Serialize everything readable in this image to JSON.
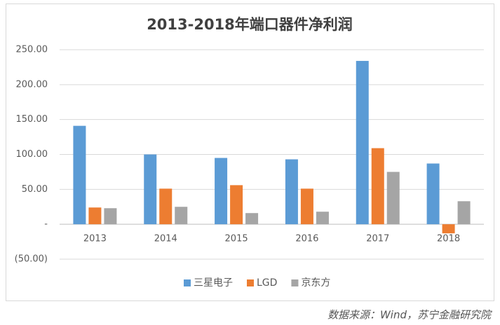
{
  "chart_data": {
    "type": "bar",
    "title": "2013-2018年端口器件净利润",
    "categories": [
      "2013",
      "2014",
      "2015",
      "2016",
      "2017",
      "2018"
    ],
    "series": [
      {
        "name": "三星电子",
        "color": "#5b9bd5",
        "values": [
          141,
          100,
          95,
          93,
          234,
          87
        ]
      },
      {
        "name": "LGD",
        "color": "#ed7d31",
        "values": [
          24,
          51,
          56,
          51,
          109,
          -13
        ]
      },
      {
        "name": "京东方",
        "color": "#a5a5a5",
        "values": [
          23,
          25,
          16,
          18,
          75,
          33
        ]
      }
    ],
    "ylim": [
      -50,
      250
    ],
    "yticks": [
      {
        "value": 250,
        "label": "250.00"
      },
      {
        "value": 200,
        "label": "200.00"
      },
      {
        "value": 150,
        "label": "150.00"
      },
      {
        "value": 100,
        "label": "100.00"
      },
      {
        "value": 50,
        "label": "50.00"
      },
      {
        "value": 0,
        "label": "-"
      },
      {
        "value": -50,
        "label": "(50.00)"
      }
    ],
    "grid": true,
    "legend": "bottom",
    "source": "数据来源：Wind，苏宁金融研究院"
  }
}
